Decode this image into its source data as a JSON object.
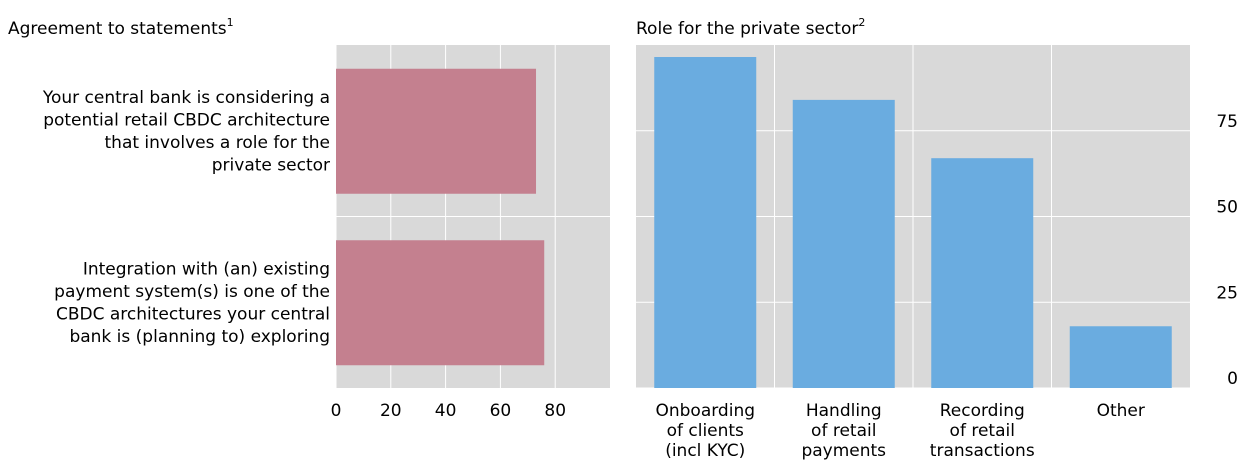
{
  "chart_data": [
    {
      "type": "hbar",
      "title": "Agreement to statements",
      "title_note": "1",
      "categories": [
        [
          "Your central bank is considering a",
          "potential retail CBDC architecture",
          "that involves a role for the",
          "private sector"
        ],
        [
          "Integration with (an) existing",
          "payment system(s) is one of the",
          "CBDC architectures your central",
          "bank is (planning to) exploring"
        ]
      ],
      "values": [
        73,
        76
      ],
      "color": "#c4808f",
      "xlim": [
        0,
        100
      ],
      "xticks": [
        0,
        20,
        40,
        60,
        80
      ],
      "grid": true
    },
    {
      "type": "bar",
      "title": "Role for the private sector",
      "title_note": "2",
      "categories": [
        [
          "Onboarding",
          "of clients",
          "(incl KYC)"
        ],
        [
          "Handling",
          "of retail",
          "payments"
        ],
        [
          "Recording",
          "of retail",
          "transactions"
        ],
        [
          "Other"
        ]
      ],
      "values": [
        96.5,
        84,
        67,
        18
      ],
      "color": "#6aace0",
      "ylim": [
        0,
        100
      ],
      "yticks": [
        0,
        25,
        50,
        75
      ],
      "grid": true,
      "y_axis_side": "right"
    }
  ]
}
